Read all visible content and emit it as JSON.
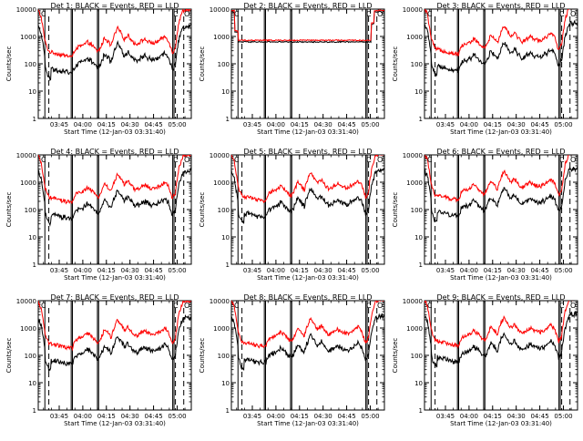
{
  "chart_data": [
    {
      "type": "line",
      "title": "Det 1: BLACK = Events, RED = LLD",
      "xlabel": "Start Time (12-Jan-03 03:31:40)",
      "ylabel": "Counts/sec",
      "y_scale": "log",
      "ylim": [
        1,
        10000
      ],
      "yticks": [
        "1",
        "10",
        "100",
        "1000",
        "10000"
      ],
      "x_ticks": [
        "03:45",
        "04:00",
        "04:15",
        "04:30",
        "04:45",
        "05:00"
      ],
      "x_tick_hours": [
        3.75,
        4.0,
        4.25,
        4.5,
        4.75,
        5.0
      ],
      "xlim": [
        3.528,
        5.15
      ],
      "series": [
        {
          "name": "BLACK = Events",
          "color": "#000000",
          "pattern": "noisy"
        },
        {
          "name": "RED = LLD",
          "color": "#ff0000",
          "pattern": "noisy"
        }
      ],
      "colors": {
        "events": "#000000",
        "lld": "#ff0000"
      },
      "corner_glyphs": [
        {
          "text": "C"
        },
        {
          "text": "C"
        },
        {
          "text": "O"
        }
      ]
    },
    {
      "type": "line",
      "title": "Det 2: BLACK = Events, RED = LLD",
      "xlabel": "Start Time (12-Jan-03 03:31:40)",
      "ylabel": "Counts/sec",
      "y_scale": "log",
      "ylim": [
        1,
        10000
      ],
      "yticks": [
        "1",
        "10",
        "100",
        "1000",
        "10000"
      ],
      "x_ticks": [
        "03:45",
        "04:00",
        "04:15",
        "04:30",
        "04:45",
        "05:00"
      ],
      "x_tick_hours": [
        3.75,
        4.0,
        4.25,
        4.5,
        4.75,
        5.0
      ],
      "xlim": [
        3.528,
        5.15
      ],
      "series": [
        {
          "name": "BLACK = Events",
          "color": "#000000",
          "pattern": "flat"
        },
        {
          "name": "RED = LLD",
          "color": "#ff0000",
          "pattern": "flat"
        }
      ],
      "colors": {
        "events": "#000000",
        "lld": "#ff0000"
      },
      "corner_glyphs": [
        {
          "text": "C"
        },
        {
          "text": "C"
        },
        {
          "text": "O"
        }
      ]
    },
    {
      "type": "line",
      "title": "Det 3: BLACK = Events, RED = LLD",
      "xlabel": "Start Time (12-Jan-03 03:31:40)",
      "ylabel": "Counts/sec",
      "y_scale": "log",
      "ylim": [
        1,
        10000
      ],
      "yticks": [
        "1",
        "10",
        "100",
        "1000",
        "10000"
      ],
      "x_ticks": [
        "03:45",
        "04:00",
        "04:15",
        "04:30",
        "04:45",
        "05:00"
      ],
      "x_tick_hours": [
        3.75,
        4.0,
        4.25,
        4.5,
        4.75,
        5.0
      ],
      "xlim": [
        3.528,
        5.15
      ],
      "series": [
        {
          "name": "BLACK = Events",
          "color": "#000000",
          "pattern": "noisy"
        },
        {
          "name": "RED = LLD",
          "color": "#ff0000",
          "pattern": "noisy"
        }
      ],
      "colors": {
        "events": "#000000",
        "lld": "#ff0000"
      },
      "corner_glyphs": [
        {
          "text": "C"
        },
        {
          "text": "C"
        },
        {
          "text": "O"
        }
      ]
    },
    {
      "type": "line",
      "title": "Det 4: BLACK = Events, RED = LLD",
      "xlabel": "Start Time (12-Jan-03 03:31:40)",
      "ylabel": "Counts/sec",
      "y_scale": "log",
      "ylim": [
        1,
        10000
      ],
      "yticks": [
        "1",
        "10",
        "100",
        "1000",
        "10000"
      ],
      "x_ticks": [
        "03:45",
        "04:00",
        "04:15",
        "04:30",
        "04:45",
        "05:00"
      ],
      "x_tick_hours": [
        3.75,
        4.0,
        4.25,
        4.5,
        4.75,
        5.0
      ],
      "xlim": [
        3.528,
        5.15
      ],
      "series": [
        {
          "name": "BLACK = Events",
          "color": "#000000",
          "pattern": "noisy"
        },
        {
          "name": "RED = LLD",
          "color": "#ff0000",
          "pattern": "noisy"
        }
      ],
      "colors": {
        "events": "#000000",
        "lld": "#ff0000"
      },
      "corner_glyphs": [
        {
          "text": "C"
        },
        {
          "text": "C"
        },
        {
          "text": "O"
        }
      ]
    },
    {
      "type": "line",
      "title": "Det 5: BLACK = Events, RED = LLD",
      "xlabel": "Start Time (12-Jan-03 03:31:40)",
      "ylabel": "Counts/sec",
      "y_scale": "log",
      "ylim": [
        1,
        10000
      ],
      "yticks": [
        "1",
        "10",
        "100",
        "1000",
        "10000"
      ],
      "x_ticks": [
        "03:45",
        "04:00",
        "04:15",
        "04:30",
        "04:45",
        "05:00"
      ],
      "x_tick_hours": [
        3.75,
        4.0,
        4.25,
        4.5,
        4.75,
        5.0
      ],
      "xlim": [
        3.528,
        5.15
      ],
      "series": [
        {
          "name": "BLACK = Events",
          "color": "#000000",
          "pattern": "noisy"
        },
        {
          "name": "RED = LLD",
          "color": "#ff0000",
          "pattern": "noisy"
        }
      ],
      "colors": {
        "events": "#000000",
        "lld": "#ff0000"
      },
      "corner_glyphs": [
        {
          "text": "C"
        },
        {
          "text": "C"
        },
        {
          "text": "O"
        }
      ]
    },
    {
      "type": "line",
      "title": "Det 6: BLACK = Events, RED = LLD",
      "xlabel": "Start Time (12-Jan-03 03:31:40)",
      "ylabel": "Counts/sec",
      "y_scale": "log",
      "ylim": [
        1,
        10000
      ],
      "yticks": [
        "1",
        "10",
        "100",
        "1000",
        "10000"
      ],
      "x_ticks": [
        "03:45",
        "04:00",
        "04:15",
        "04:30",
        "04:45",
        "05:00"
      ],
      "x_tick_hours": [
        3.75,
        4.0,
        4.25,
        4.5,
        4.75,
        5.0
      ],
      "xlim": [
        3.528,
        5.15
      ],
      "series": [
        {
          "name": "BLACK = Events",
          "color": "#000000",
          "pattern": "noisy"
        },
        {
          "name": "RED = LLD",
          "color": "#ff0000",
          "pattern": "noisy"
        }
      ],
      "colors": {
        "events": "#000000",
        "lld": "#ff0000"
      },
      "corner_glyphs": [
        {
          "text": "C"
        },
        {
          "text": "C"
        },
        {
          "text": "O"
        }
      ]
    },
    {
      "type": "line",
      "title": "Det 7: BLACK = Events, RED = LLD",
      "xlabel": "Start Time (12-Jan-03 03:31:40)",
      "ylabel": "Counts/sec",
      "y_scale": "log",
      "ylim": [
        1,
        10000
      ],
      "yticks": [
        "1",
        "10",
        "100",
        "1000",
        "10000"
      ],
      "x_ticks": [
        "03:45",
        "04:00",
        "04:15",
        "04:30",
        "04:45",
        "05:00"
      ],
      "x_tick_hours": [
        3.75,
        4.0,
        4.25,
        4.5,
        4.75,
        5.0
      ],
      "xlim": [
        3.528,
        5.15
      ],
      "series": [
        {
          "name": "BLACK = Events",
          "color": "#000000",
          "pattern": "noisy"
        },
        {
          "name": "RED = LLD",
          "color": "#ff0000",
          "pattern": "noisy"
        }
      ],
      "colors": {
        "events": "#000000",
        "lld": "#ff0000"
      },
      "corner_glyphs": [
        {
          "text": "C"
        },
        {
          "text": "C"
        },
        {
          "text": "O"
        }
      ]
    },
    {
      "type": "line",
      "title": "Det 8: BLACK = Events, RED = LLD",
      "xlabel": "Start Time (12-Jan-03 03:31:40)",
      "ylabel": "Counts/sec",
      "y_scale": "log",
      "ylim": [
        1,
        10000
      ],
      "yticks": [
        "1",
        "10",
        "100",
        "1000",
        "10000"
      ],
      "x_ticks": [
        "03:45",
        "04:00",
        "04:15",
        "04:30",
        "04:45",
        "05:00"
      ],
      "x_tick_hours": [
        3.75,
        4.0,
        4.25,
        4.5,
        4.75,
        5.0
      ],
      "xlim": [
        3.528,
        5.15
      ],
      "series": [
        {
          "name": "BLACK = Events",
          "color": "#000000",
          "pattern": "noisy"
        },
        {
          "name": "RED = LLD",
          "color": "#ff0000",
          "pattern": "noisy"
        }
      ],
      "colors": {
        "events": "#000000",
        "lld": "#ff0000"
      },
      "corner_glyphs": [
        {
          "text": "C"
        },
        {
          "text": "C"
        },
        {
          "text": "O"
        }
      ]
    },
    {
      "type": "line",
      "title": "Det 9: BLACK = Events, RED = LLD",
      "xlabel": "Start Time (12-Jan-03 03:31:40)",
      "ylabel": "Counts/sec",
      "y_scale": "log",
      "ylim": [
        1,
        10000
      ],
      "yticks": [
        "1",
        "10",
        "100",
        "1000",
        "10000"
      ],
      "x_ticks": [
        "03:45",
        "04:00",
        "04:15",
        "04:30",
        "04:45",
        "05:00"
      ],
      "x_tick_hours": [
        3.75,
        4.0,
        4.25,
        4.5,
        4.75,
        5.0
      ],
      "xlim": [
        3.528,
        5.15
      ],
      "series": [
        {
          "name": "BLACK = Events",
          "color": "#000000",
          "pattern": "noisy"
        },
        {
          "name": "RED = LLD",
          "color": "#ff0000",
          "pattern": "noisy"
        }
      ],
      "colors": {
        "events": "#000000",
        "lld": "#ff0000"
      },
      "corner_glyphs": [
        {
          "text": "C"
        },
        {
          "text": "C"
        },
        {
          "text": "O"
        }
      ]
    }
  ],
  "events": {
    "solid_lines_hours": [
      3.598,
      3.877,
      3.89,
      4.155,
      4.168,
      4.953,
      4.967
    ],
    "dashed_lines_hours": [
      3.64,
      4.982,
      5.07
    ]
  }
}
